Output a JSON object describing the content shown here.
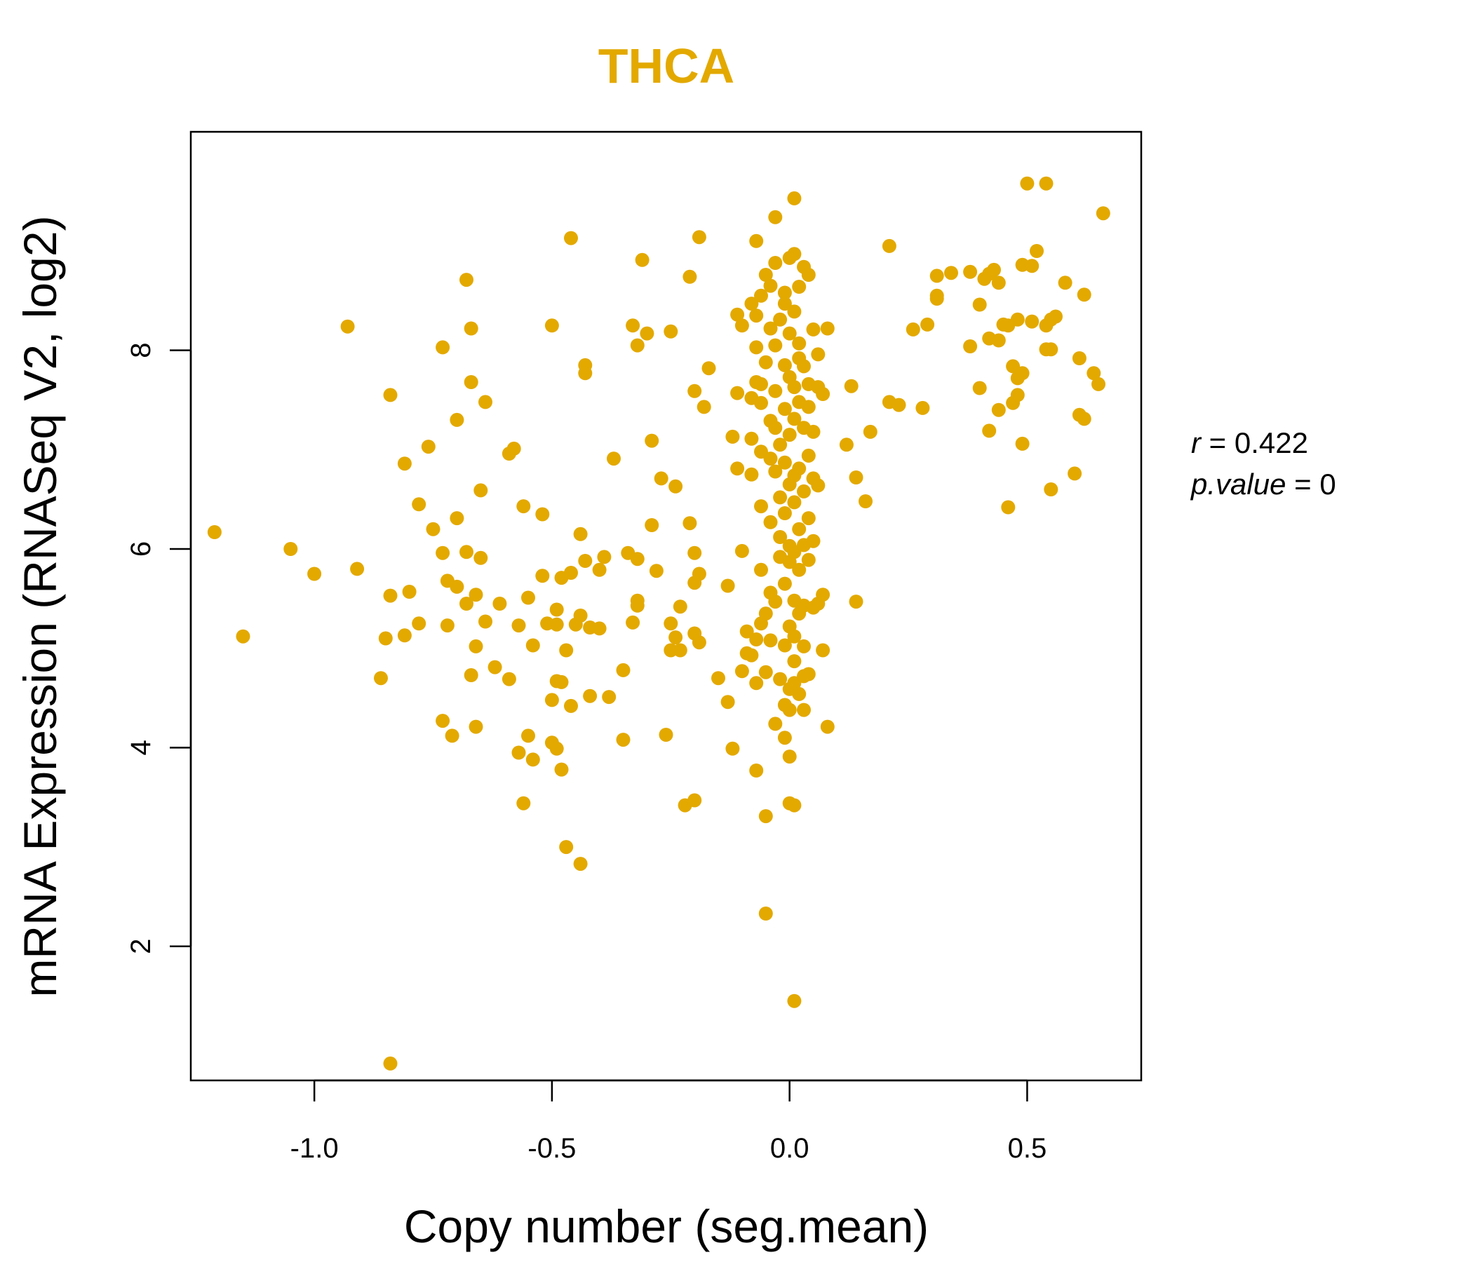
{
  "colors": {
    "accent": "#E3A900",
    "axis": "#000000",
    "background": "#FFFFFF"
  },
  "chart_data": {
    "type": "scatter",
    "title": "THCA",
    "xlabel": "Copy number (seg.mean)",
    "ylabel": "mRNA Expression (RNASeq V2, log2)",
    "xlim": [
      -1.26,
      0.74
    ],
    "ylim": [
      0.65,
      10.2
    ],
    "xticks": [
      -1.0,
      -0.5,
      0.0,
      0.5
    ],
    "xtick_labels": [
      "-1.0",
      "-0.5",
      "0.0",
      "0.5"
    ],
    "yticks": [
      2,
      4,
      6,
      8
    ],
    "ytick_labels": [
      "2",
      "4",
      "6",
      "8"
    ],
    "stats": {
      "r_label": "r",
      "r_value": "0.422",
      "p_label": "p.value",
      "p_value": "0"
    },
    "points": [
      [
        -1.21,
        6.17
      ],
      [
        -1.15,
        5.12
      ],
      [
        -1.05,
        6.0
      ],
      [
        -1.0,
        5.75
      ],
      [
        -0.93,
        8.24
      ],
      [
        -0.91,
        5.8
      ],
      [
        -0.84,
        7.55
      ],
      [
        -0.85,
        5.1
      ],
      [
        -0.84,
        0.82
      ],
      [
        -0.84,
        5.53
      ],
      [
        -0.86,
        4.7
      ],
      [
        -0.81,
        5.13
      ],
      [
        -0.81,
        6.86
      ],
      [
        -0.8,
        5.57
      ],
      [
        -0.78,
        5.25
      ],
      [
        -0.78,
        6.45
      ],
      [
        -0.76,
        7.03
      ],
      [
        -0.75,
        6.2
      ],
      [
        -0.73,
        5.96
      ],
      [
        -0.73,
        8.03
      ],
      [
        -0.73,
        4.27
      ],
      [
        -0.72,
        5.23
      ],
      [
        -0.72,
        5.68
      ],
      [
        -0.71,
        4.12
      ],
      [
        -0.7,
        5.62
      ],
      [
        -0.7,
        7.3
      ],
      [
        -0.7,
        6.31
      ],
      [
        -0.68,
        8.71
      ],
      [
        -0.68,
        5.45
      ],
      [
        -0.68,
        5.97
      ],
      [
        -0.67,
        4.73
      ],
      [
        -0.67,
        8.22
      ],
      [
        -0.67,
        7.68
      ],
      [
        -0.66,
        5.02
      ],
      [
        -0.66,
        4.21
      ],
      [
        -0.66,
        5.54
      ],
      [
        -0.65,
        5.91
      ],
      [
        -0.65,
        6.59
      ],
      [
        -0.64,
        5.27
      ],
      [
        -0.64,
        7.48
      ],
      [
        -0.62,
        4.81
      ],
      [
        -0.61,
        5.45
      ],
      [
        -0.59,
        4.69
      ],
      [
        -0.59,
        6.96
      ],
      [
        -0.58,
        7.01
      ],
      [
        -0.57,
        3.95
      ],
      [
        -0.57,
        5.23
      ],
      [
        -0.56,
        3.44
      ],
      [
        -0.56,
        6.43
      ],
      [
        -0.55,
        4.12
      ],
      [
        -0.55,
        5.51
      ],
      [
        -0.54,
        3.88
      ],
      [
        -0.54,
        5.03
      ],
      [
        -0.52,
        5.73
      ],
      [
        -0.52,
        6.35
      ],
      [
        -0.51,
        5.25
      ],
      [
        -0.5,
        4.48
      ],
      [
        -0.5,
        4.05
      ],
      [
        -0.5,
        8.25
      ],
      [
        -0.49,
        3.99
      ],
      [
        -0.49,
        4.67
      ],
      [
        -0.49,
        5.39
      ],
      [
        -0.49,
        5.24
      ],
      [
        -0.48,
        3.78
      ],
      [
        -0.48,
        4.66
      ],
      [
        -0.48,
        5.71
      ],
      [
        -0.47,
        3.0
      ],
      [
        -0.47,
        4.98
      ],
      [
        -0.46,
        4.42
      ],
      [
        -0.46,
        5.76
      ],
      [
        -0.46,
        9.13
      ],
      [
        -0.45,
        5.24
      ],
      [
        -0.44,
        5.33
      ],
      [
        -0.44,
        6.15
      ],
      [
        -0.44,
        2.83
      ],
      [
        -0.43,
        5.88
      ],
      [
        -0.43,
        7.85
      ],
      [
        -0.43,
        7.77
      ],
      [
        -0.42,
        4.52
      ],
      [
        -0.42,
        5.21
      ],
      [
        -0.4,
        5.79
      ],
      [
        -0.4,
        5.2
      ],
      [
        -0.39,
        5.92
      ],
      [
        -0.38,
        4.51
      ],
      [
        -0.37,
        6.91
      ],
      [
        -0.35,
        4.78
      ],
      [
        -0.35,
        4.08
      ],
      [
        -0.34,
        5.96
      ],
      [
        -0.33,
        8.25
      ],
      [
        -0.33,
        5.26
      ],
      [
        -0.32,
        5.48
      ],
      [
        -0.32,
        5.43
      ],
      [
        -0.32,
        5.9
      ],
      [
        -0.32,
        8.05
      ],
      [
        -0.31,
        8.91
      ],
      [
        -0.3,
        8.17
      ],
      [
        -0.29,
        7.09
      ],
      [
        -0.29,
        6.24
      ],
      [
        -0.28,
        5.78
      ],
      [
        -0.27,
        6.71
      ],
      [
        -0.26,
        4.13
      ],
      [
        -0.25,
        5.25
      ],
      [
        -0.25,
        4.98
      ],
      [
        -0.25,
        8.19
      ],
      [
        -0.24,
        6.63
      ],
      [
        -0.24,
        5.11
      ],
      [
        -0.23,
        4.98
      ],
      [
        -0.23,
        5.42
      ],
      [
        -0.22,
        3.42
      ],
      [
        -0.21,
        8.74
      ],
      [
        -0.21,
        6.26
      ],
      [
        -0.2,
        5.96
      ],
      [
        -0.2,
        5.66
      ],
      [
        -0.2,
        3.47
      ],
      [
        -0.2,
        5.15
      ],
      [
        -0.2,
        7.59
      ],
      [
        -0.19,
        5.06
      ],
      [
        -0.19,
        5.75
      ],
      [
        -0.19,
        9.14
      ],
      [
        -0.18,
        7.43
      ],
      [
        -0.17,
        7.82
      ],
      [
        -0.15,
        4.7
      ],
      [
        -0.13,
        4.46
      ],
      [
        -0.13,
        5.63
      ],
      [
        -0.12,
        3.99
      ],
      [
        -0.12,
        7.13
      ],
      [
        -0.11,
        8.36
      ],
      [
        -0.11,
        6.81
      ],
      [
        -0.11,
        7.57
      ],
      [
        -0.1,
        4.77
      ],
      [
        -0.1,
        8.25
      ],
      [
        -0.1,
        5.98
      ],
      [
        -0.09,
        5.17
      ],
      [
        -0.09,
        4.95
      ],
      [
        -0.08,
        8.47
      ],
      [
        -0.08,
        7.52
      ],
      [
        -0.08,
        6.75
      ],
      [
        -0.08,
        4.93
      ],
      [
        -0.08,
        7.11
      ],
      [
        -0.07,
        7.68
      ],
      [
        -0.07,
        5.09
      ],
      [
        -0.07,
        3.77
      ],
      [
        -0.07,
        4.65
      ],
      [
        -0.07,
        8.03
      ],
      [
        -0.07,
        9.1
      ],
      [
        -0.07,
        8.35
      ],
      [
        -0.06,
        7.66
      ],
      [
        -0.06,
        7.47
      ],
      [
        -0.06,
        8.55
      ],
      [
        -0.06,
        5.25
      ],
      [
        -0.06,
        6.43
      ],
      [
        -0.06,
        5.79
      ],
      [
        -0.06,
        6.98
      ],
      [
        -0.05,
        7.88
      ],
      [
        -0.05,
        5.35
      ],
      [
        -0.05,
        8.76
      ],
      [
        -0.05,
        3.31
      ],
      [
        -0.05,
        2.33
      ],
      [
        -0.05,
        4.76
      ],
      [
        -0.04,
        5.08
      ],
      [
        -0.04,
        8.22
      ],
      [
        -0.04,
        6.91
      ],
      [
        -0.04,
        6.27
      ],
      [
        -0.04,
        7.29
      ],
      [
        -0.04,
        8.65
      ],
      [
        -0.04,
        5.56
      ],
      [
        -0.03,
        9.34
      ],
      [
        -0.03,
        8.05
      ],
      [
        -0.03,
        5.47
      ],
      [
        -0.03,
        7.22
      ],
      [
        -0.03,
        6.78
      ],
      [
        -0.03,
        7.59
      ],
      [
        -0.03,
        4.24
      ],
      [
        -0.03,
        8.88
      ],
      [
        -0.02,
        6.52
      ],
      [
        -0.02,
        5.92
      ],
      [
        -0.02,
        4.69
      ],
      [
        -0.02,
        8.31
      ],
      [
        -0.02,
        7.05
      ],
      [
        -0.02,
        6.12
      ],
      [
        -0.01,
        4.43
      ],
      [
        -0.01,
        7.85
      ],
      [
        -0.01,
        5.65
      ],
      [
        -0.01,
        8.47
      ],
      [
        -0.01,
        4.1
      ],
      [
        -0.01,
        6.87
      ],
      [
        -0.01,
        7.41
      ],
      [
        -0.01,
        6.36
      ],
      [
        -0.01,
        5.03
      ],
      [
        -0.01,
        8.58
      ],
      [
        0.0,
        3.91
      ],
      [
        0.0,
        5.87
      ],
      [
        0.0,
        4.59
      ],
      [
        0.0,
        7.73
      ],
      [
        0.0,
        6.65
      ],
      [
        0.0,
        8.93
      ],
      [
        0.0,
        5.22
      ],
      [
        0.0,
        4.38
      ],
      [
        0.0,
        7.15
      ],
      [
        0.0,
        6.03
      ],
      [
        0.0,
        3.44
      ],
      [
        0.0,
        8.17
      ],
      [
        0.01,
        5.48
      ],
      [
        0.01,
        6.74
      ],
      [
        0.01,
        9.53
      ],
      [
        0.01,
        4.65
      ],
      [
        0.01,
        7.63
      ],
      [
        0.01,
        5.97
      ],
      [
        0.01,
        8.39
      ],
      [
        0.01,
        6.47
      ],
      [
        0.01,
        4.87
      ],
      [
        0.01,
        3.42
      ],
      [
        0.01,
        7.31
      ],
      [
        0.01,
        8.97
      ],
      [
        0.01,
        5.12
      ],
      [
        0.01,
        1.45
      ],
      [
        0.02,
        6.2
      ],
      [
        0.02,
        7.92
      ],
      [
        0.02,
        5.35
      ],
      [
        0.02,
        8.64
      ],
      [
        0.02,
        6.81
      ],
      [
        0.02,
        4.54
      ],
      [
        0.02,
        7.48
      ],
      [
        0.02,
        5.79
      ],
      [
        0.02,
        8.07
      ],
      [
        0.03,
        6.58
      ],
      [
        0.03,
        5.02
      ],
      [
        0.03,
        7.22
      ],
      [
        0.03,
        8.84
      ],
      [
        0.03,
        4.72
      ],
      [
        0.03,
        6.04
      ],
      [
        0.03,
        7.84
      ],
      [
        0.03,
        5.43
      ],
      [
        0.03,
        4.38
      ],
      [
        0.04,
        6.94
      ],
      [
        0.04,
        8.76
      ],
      [
        0.04,
        5.89
      ],
      [
        0.04,
        7.43
      ],
      [
        0.04,
        6.31
      ],
      [
        0.04,
        4.74
      ],
      [
        0.04,
        7.66
      ],
      [
        0.05,
        6.08
      ],
      [
        0.05,
        5.41
      ],
      [
        0.05,
        8.21
      ],
      [
        0.05,
        7.18
      ],
      [
        0.05,
        6.71
      ],
      [
        0.06,
        7.96
      ],
      [
        0.06,
        6.64
      ],
      [
        0.06,
        5.45
      ],
      [
        0.06,
        7.63
      ],
      [
        0.07,
        4.98
      ],
      [
        0.07,
        7.56
      ],
      [
        0.07,
        5.54
      ],
      [
        0.08,
        4.21
      ],
      [
        0.08,
        8.22
      ],
      [
        0.12,
        7.05
      ],
      [
        0.13,
        7.64
      ],
      [
        0.14,
        6.72
      ],
      [
        0.14,
        5.47
      ],
      [
        0.16,
        6.48
      ],
      [
        0.17,
        7.18
      ],
      [
        0.21,
        9.05
      ],
      [
        0.21,
        7.48
      ],
      [
        0.23,
        7.45
      ],
      [
        0.26,
        8.21
      ],
      [
        0.28,
        7.42
      ],
      [
        0.29,
        8.26
      ],
      [
        0.31,
        8.55
      ],
      [
        0.31,
        8.75
      ],
      [
        0.31,
        8.52
      ],
      [
        0.34,
        8.78
      ],
      [
        0.38,
        8.79
      ],
      [
        0.38,
        8.04
      ],
      [
        0.4,
        7.62
      ],
      [
        0.4,
        8.46
      ],
      [
        0.41,
        8.72
      ],
      [
        0.42,
        8.77
      ],
      [
        0.42,
        8.12
      ],
      [
        0.42,
        7.19
      ],
      [
        0.43,
        8.81
      ],
      [
        0.44,
        8.1
      ],
      [
        0.44,
        8.68
      ],
      [
        0.44,
        7.4
      ],
      [
        0.45,
        8.26
      ],
      [
        0.46,
        6.42
      ],
      [
        0.46,
        8.25
      ],
      [
        0.47,
        7.47
      ],
      [
        0.47,
        7.84
      ],
      [
        0.48,
        7.55
      ],
      [
        0.48,
        7.72
      ],
      [
        0.48,
        8.31
      ],
      [
        0.49,
        7.06
      ],
      [
        0.49,
        7.77
      ],
      [
        0.49,
        8.86
      ],
      [
        0.5,
        9.68
      ],
      [
        0.51,
        8.85
      ],
      [
        0.51,
        8.29
      ],
      [
        0.52,
        9.0
      ],
      [
        0.54,
        8.25
      ],
      [
        0.54,
        8.01
      ],
      [
        0.54,
        9.68
      ],
      [
        0.55,
        8.01
      ],
      [
        0.55,
        8.31
      ],
      [
        0.55,
        6.6
      ],
      [
        0.56,
        8.34
      ],
      [
        0.58,
        8.68
      ],
      [
        0.6,
        6.76
      ],
      [
        0.61,
        7.92
      ],
      [
        0.61,
        7.35
      ],
      [
        0.62,
        7.31
      ],
      [
        0.62,
        8.56
      ],
      [
        0.64,
        7.77
      ],
      [
        0.65,
        7.66
      ],
      [
        0.66,
        9.38
      ]
    ]
  }
}
